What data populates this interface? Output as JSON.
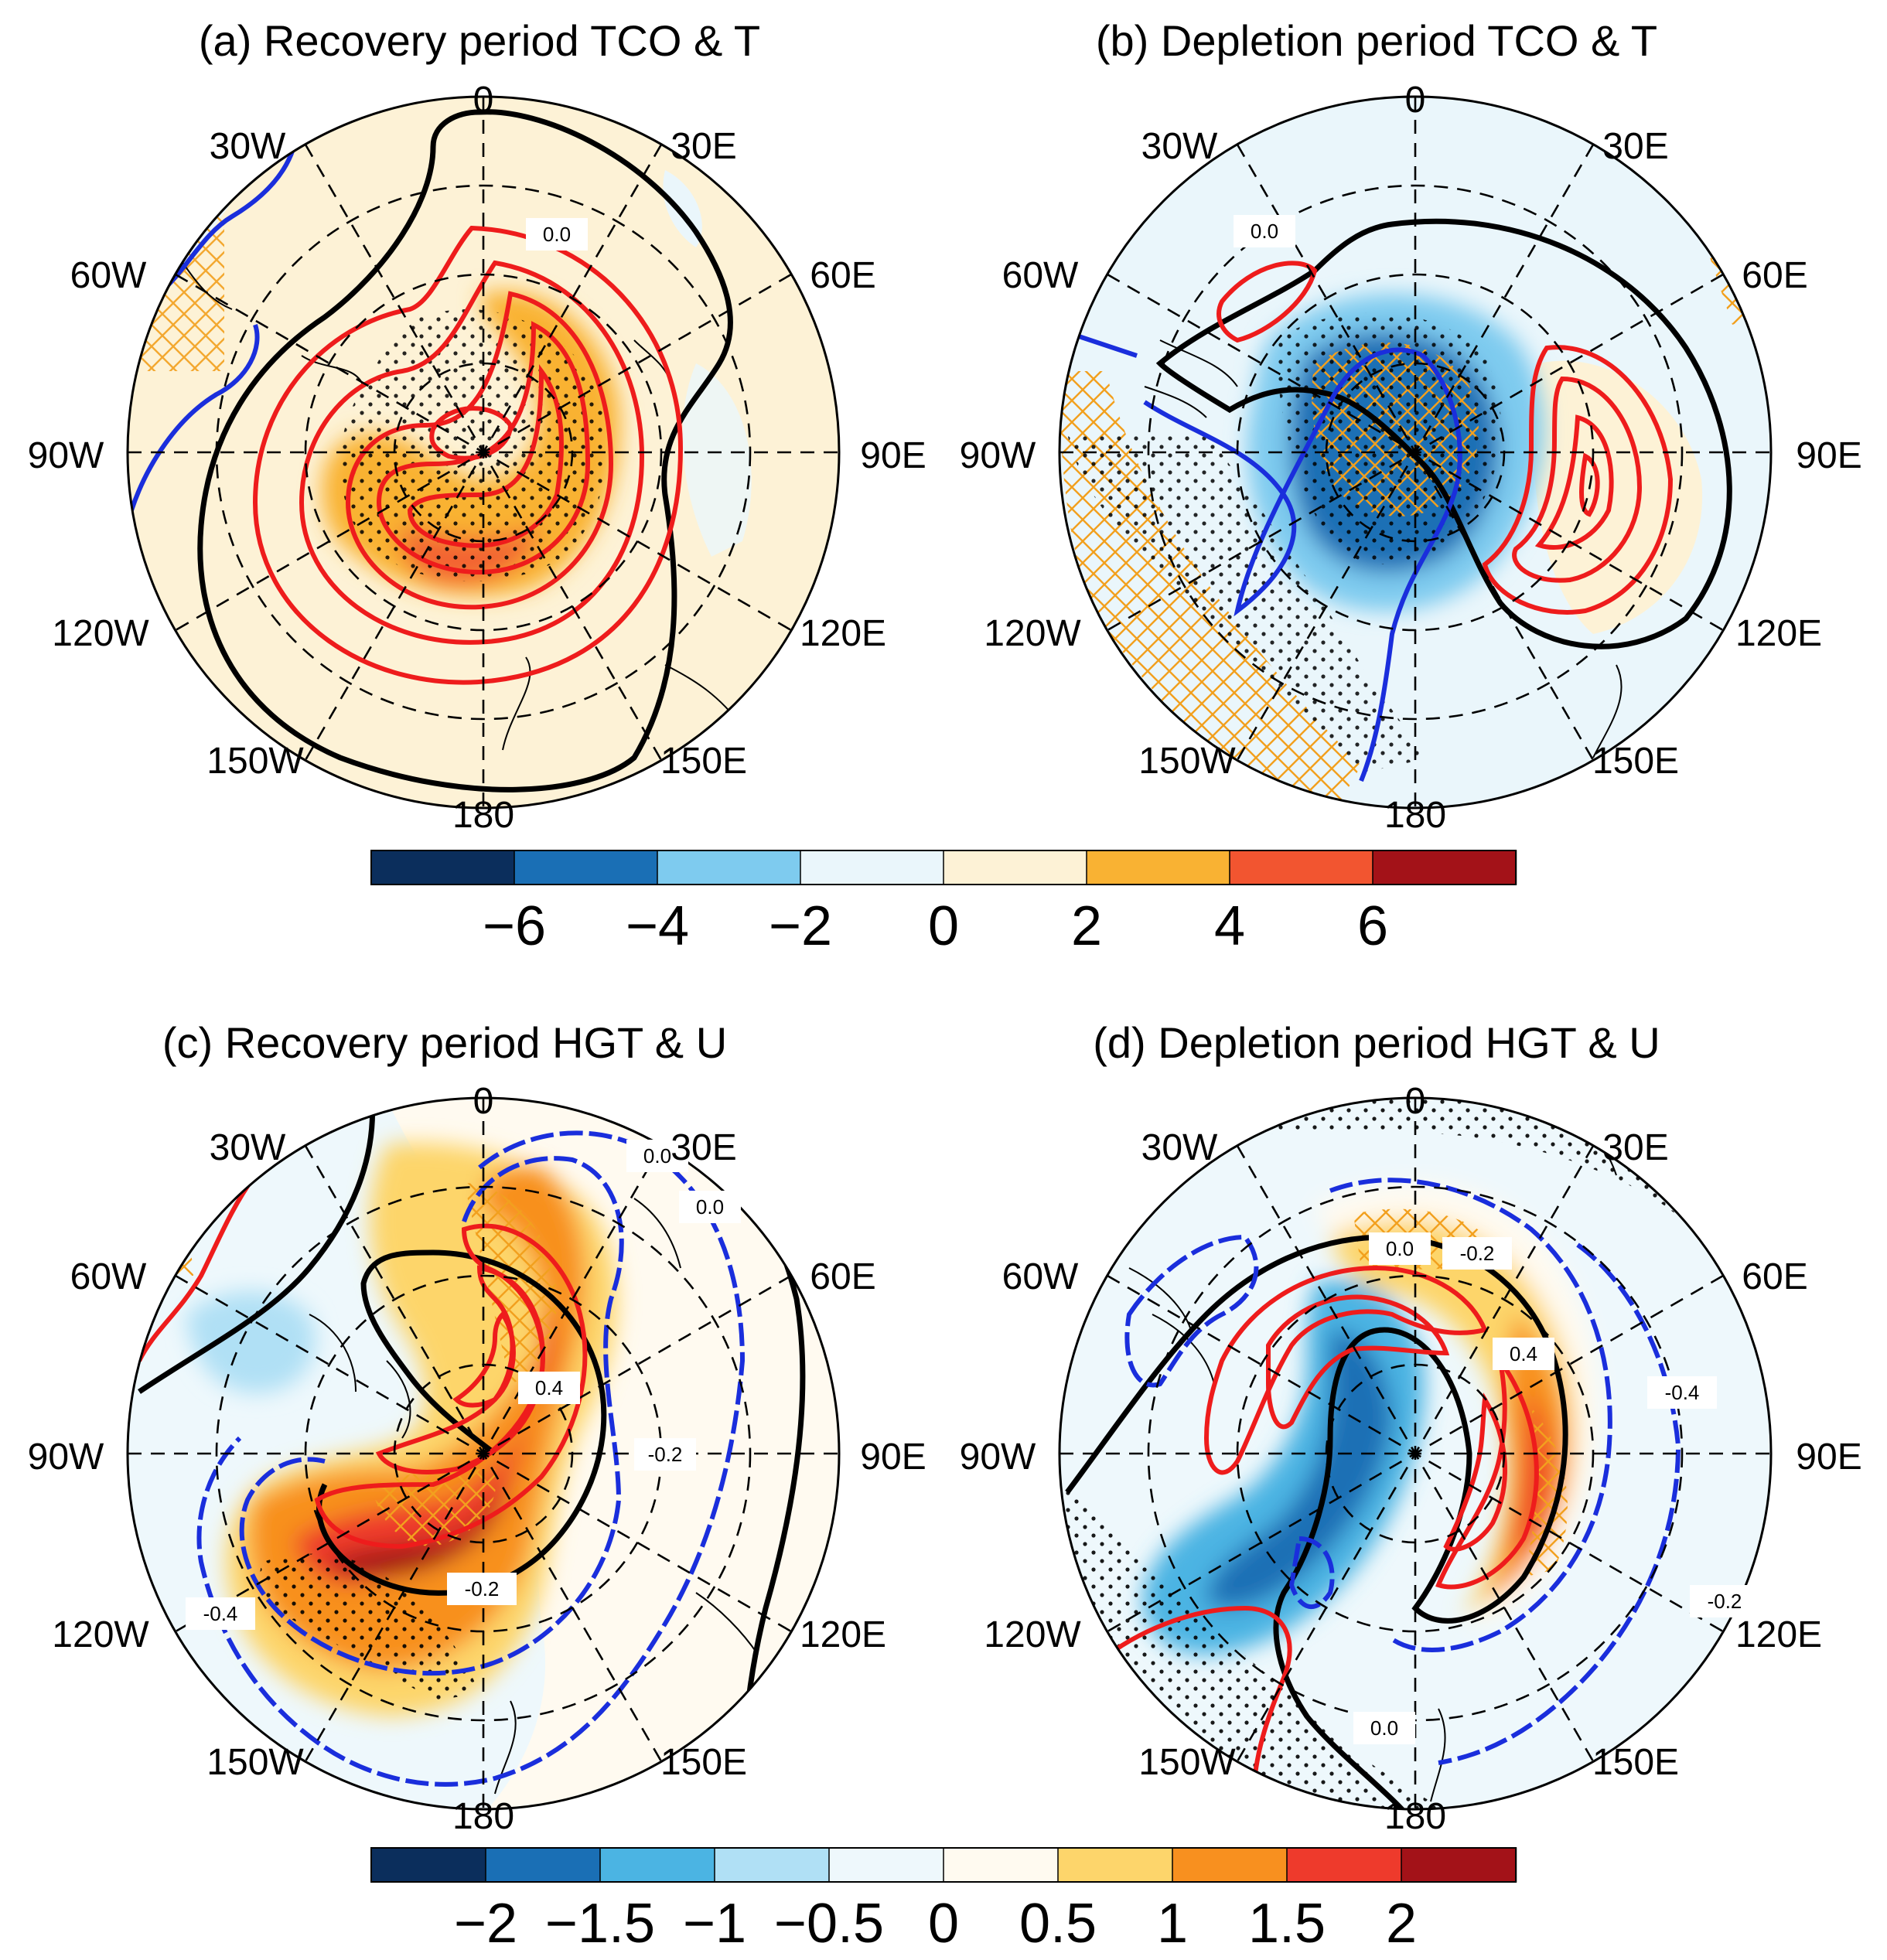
{
  "panels": [
    {
      "title": "(a) Recovery period TCO & T",
      "lon_labels": [
        "0",
        "30E",
        "60E",
        "90E",
        "120E",
        "150E",
        "180",
        "150W",
        "120W",
        "90W",
        "60W",
        "30W"
      ],
      "contour_labels": [
        "0.0"
      ],
      "contour_values": [
        0.0,
        0.5,
        1.0,
        1.5,
        2.0,
        2.5,
        3.0,
        3.5,
        4.0
      ],
      "colormap": "tco"
    },
    {
      "title": "(b) Depletion period TCO & T",
      "lon_labels": [
        "0",
        "30E",
        "60E",
        "90E",
        "120E",
        "150E",
        "180",
        "150W",
        "120W",
        "90W",
        "60W",
        "30W"
      ],
      "contour_labels": [
        "0.0"
      ],
      "contour_values": [
        0.0,
        0.5,
        1.0,
        1.5,
        2.0,
        -0.5
      ],
      "colormap": "tco"
    },
    {
      "title": "(c) Recovery period HGT & U",
      "lon_labels": [
        "0",
        "30E",
        "60E",
        "90E",
        "120E",
        "150E",
        "180",
        "150W",
        "120W",
        "90W",
        "60W",
        "30W"
      ],
      "contour_labels": [
        "0.0",
        "0.0",
        "0.4",
        "-0.2",
        "-0.2",
        "-0.4"
      ],
      "contour_values": [
        0.0,
        0.2,
        0.4,
        0.6,
        -0.2,
        -0.4
      ],
      "colormap": "hgt"
    },
    {
      "title": "(d) Depletion period HGT & U",
      "lon_labels": [
        "0",
        "30E",
        "60E",
        "90E",
        "120E",
        "150E",
        "180",
        "150W",
        "120W",
        "90W",
        "60W",
        "30W"
      ],
      "contour_labels": [
        "0.0",
        "-0.2",
        "0.4",
        "-0.4",
        "-0.2",
        "0.0"
      ],
      "contour_values": [
        0.0,
        0.2,
        0.4,
        -0.2,
        -0.4
      ],
      "colormap": "hgt"
    }
  ],
  "colorbars": [
    {
      "ticks": [
        "−6",
        "−4",
        "−2",
        "0",
        "2",
        "4",
        "6"
      ],
      "colors": [
        "#0b2e5c",
        "#1a6fb5",
        "#7ecbef",
        "#eaf6fb",
        "#fdf2d6",
        "#f9b233",
        "#f25530",
        "#a31218"
      ]
    },
    {
      "ticks": [
        "−2",
        "−1.5",
        "−1",
        "−0.5",
        "0",
        "0.5",
        "1",
        "1.5",
        "2"
      ],
      "colors": [
        "#0b2e5c",
        "#1a6fb5",
        "#4bb4e3",
        "#b0e0f5",
        "#eef8fc",
        "#fffaf0",
        "#fdd56b",
        "#f8901f",
        "#ee3a2c",
        "#a31218"
      ]
    }
  ],
  "styles": {
    "positive_contour": "#ee1c1c",
    "negative_contour": "#1a2edc",
    "zero_contour": "#000000",
    "hatch": "#f2a01e"
  }
}
